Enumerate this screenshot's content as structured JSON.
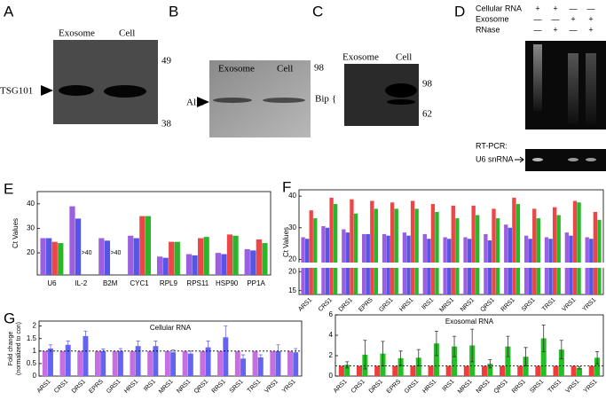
{
  "panels": {
    "A": {
      "letter": "A",
      "lanes": [
        "Exosome",
        "Cell"
      ],
      "protein": "TSG101",
      "markers": [
        "49",
        "38"
      ]
    },
    "B": {
      "letter": "B",
      "lanes": [
        "Exosome",
        "Cell"
      ],
      "protein": "Alix",
      "markers": [
        "98"
      ]
    },
    "C": {
      "letter": "C",
      "lanes": [
        "Exosome",
        "Cell"
      ],
      "protein": "Bip",
      "bracket": "{",
      "markers": [
        "98",
        "62"
      ]
    },
    "D": {
      "letter": "D",
      "rows": [
        {
          "label": "Cellular RNA",
          "marks": [
            "+",
            "+",
            "—",
            "—"
          ]
        },
        {
          "label": "Exosome",
          "marks": [
            "—",
            "—",
            "+",
            "+"
          ]
        },
        {
          "label": "RNase",
          "marks": [
            "—",
            "+",
            "—",
            "+"
          ]
        }
      ],
      "rtpcr": "RT-PCR:",
      "target": "U6 snRNA"
    },
    "E": {
      "letter": "E"
    },
    "F": {
      "letter": "F"
    },
    "G": {
      "letter": "G"
    }
  },
  "chart_data": [
    {
      "type": "bar",
      "ylabel": "Ct Values",
      "categories": [
        "U6",
        "IL-2",
        "B2M",
        "CYC1",
        "RPL9",
        "RPS11",
        "HSP90",
        "PP1A"
      ],
      "series": [
        {
          "color": "#9b5fe0",
          "values": [
            26,
            39,
            26,
            27,
            18.5,
            19.5,
            20,
            21.5
          ]
        },
        {
          "color": "#5555e8",
          "values": [
            26,
            34,
            25,
            26,
            18,
            19,
            19.5,
            21
          ]
        },
        {
          "color": "#ec4646",
          "values": [
            24.5,
            null,
            null,
            35,
            24.5,
            26,
            27.5,
            25.5
          ]
        },
        {
          "color": "#2ab52a",
          "values": [
            24,
            null,
            null,
            35,
            24.5,
            26.5,
            27,
            24
          ]
        }
      ],
      "annotations": [
        ">40",
        ">40"
      ],
      "ylim": [
        11,
        45
      ],
      "yticks": [
        20,
        30,
        40
      ]
    },
    {
      "type": "broken-bar",
      "ylabel": "Ct Values",
      "categories": [
        "ARS1",
        "CRS1",
        "DRS1",
        "EPRS",
        "GRS1",
        "HRS1",
        "IRS1",
        "MRS1",
        "NRS1",
        "QRS1",
        "RRS1",
        "SRS1",
        "TRS1",
        "VRS1",
        "YRS1"
      ],
      "series": [
        {
          "color": "#9b5fe0",
          "values": [
            27,
            30.5,
            29.5,
            28,
            28,
            28.5,
            28,
            27,
            27,
            28,
            31,
            27.5,
            27,
            28.5,
            27
          ]
        },
        {
          "color": "#5555e8",
          "values": [
            26.5,
            30,
            28.5,
            28,
            27.5,
            27.5,
            26.5,
            26.5,
            26.5,
            26,
            30,
            26.5,
            26.5,
            27.5,
            26.5
          ]
        },
        {
          "color": "#ec4646",
          "values": [
            35.5,
            39.5,
            39,
            38.5,
            38,
            38.5,
            37.5,
            37,
            37,
            36,
            39.5,
            36,
            36.5,
            38.5,
            35
          ]
        },
        {
          "color": "#2ab52a",
          "values": [
            33,
            37.5,
            34.5,
            36,
            36,
            36,
            35,
            33,
            34,
            33,
            37.5,
            33,
            34,
            38,
            32.5
          ]
        }
      ],
      "ylim": [
        19,
        42
      ],
      "yticks": [
        20,
        30,
        40
      ],
      "ylim_lower": [
        14,
        21
      ],
      "yticks_lower": [
        15,
        20
      ]
    },
    {
      "type": "bar",
      "title": "Cellular RNA",
      "ylabel": [
        "Fold change",
        "(normalized to con)"
      ],
      "categories": [
        "ARS1",
        "CRS1",
        "DRS1",
        "EPRS",
        "GRS1",
        "HRS1",
        "IRS1",
        "MRS1",
        "NRS1",
        "QRS1",
        "RRS1",
        "SRS1",
        "TRS1",
        "VRS1",
        "YRS1"
      ],
      "series": [
        {
          "color": "#c76ee0",
          "values": [
            1,
            1,
            1,
            1,
            1,
            1,
            1,
            1,
            1,
            1,
            1,
            1,
            1,
            1,
            1
          ]
        },
        {
          "color": "#6464f0",
          "values": [
            1.1,
            1.25,
            1.6,
            1.0,
            1.0,
            1.2,
            1.2,
            0.95,
            0.9,
            1.15,
            1.55,
            0.7,
            0.75,
            1.0,
            0.95
          ],
          "errors": [
            0.15,
            0.15,
            0.2,
            0.08,
            0.1,
            0.2,
            0.2,
            0.1,
            0.1,
            0.25,
            0.45,
            0.15,
            0.1,
            0.25,
            0.15
          ]
        }
      ],
      "refline": 1,
      "ylim": [
        0,
        2.2
      ],
      "yticks": [
        0,
        0.5,
        1,
        1.5,
        2
      ]
    },
    {
      "type": "bar",
      "title": "Exosomal RNA",
      "categories": [
        "ARS1",
        "CRS1",
        "DRS1",
        "EPRS",
        "GRS1",
        "HRS1",
        "IRS1",
        "MRS1",
        "NRS1",
        "QRS1",
        "RRS1",
        "SRS1",
        "TRS1",
        "VRS1",
        "YRS1"
      ],
      "series": [
        {
          "color": "#f03c3c",
          "values": [
            1,
            1,
            1,
            1,
            1,
            1,
            1,
            1,
            1,
            1,
            1,
            1,
            1,
            1,
            1
          ]
        },
        {
          "color": "#22c022",
          "values": [
            1.1,
            2.1,
            2.2,
            1.75,
            1.8,
            3.2,
            2.9,
            3.0,
            1.2,
            2.9,
            1.9,
            3.7,
            2.6,
            0.8,
            1.8
          ],
          "errors": [
            0.3,
            1.4,
            1.2,
            0.7,
            0.8,
            1.2,
            1.0,
            1.6,
            0.4,
            1.0,
            0.9,
            1.3,
            0.9,
            0.1,
            0.6
          ]
        }
      ],
      "refline": 1,
      "ylim": [
        0,
        6
      ],
      "yticks": [
        0,
        2,
        4,
        6
      ]
    }
  ]
}
